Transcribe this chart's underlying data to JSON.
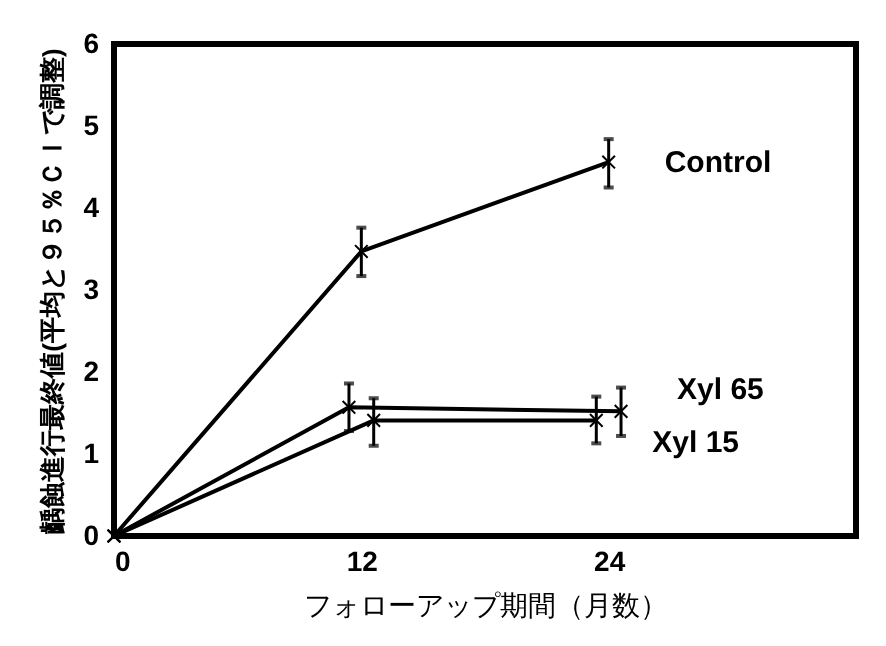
{
  "chart_data": {
    "type": "line",
    "xlabel": "フォローアップ期間（月数）",
    "ylabel": "齲蝕進行最終値(平均と９５％ＣＩで調整)",
    "xlim": [
      0,
      36
    ],
    "xticks": [
      0,
      12,
      24
    ],
    "ylim": [
      0,
      6
    ],
    "yticks": [
      0,
      1,
      2,
      3,
      4,
      5,
      6
    ],
    "grid": false,
    "marker": "cross",
    "line_style": "solid",
    "series": [
      {
        "name": "Control",
        "color": "#000000",
        "x": [
          0,
          12,
          24
        ],
        "values": [
          0,
          3.47,
          4.56
        ],
        "errors": [
          null,
          [
            3.17,
            3.76
          ],
          [
            4.25,
            4.84
          ]
        ]
      },
      {
        "name": "Xyl 65",
        "color": "#000000",
        "x": [
          0,
          11.4,
          24.6
        ],
        "values": [
          0,
          1.57,
          1.52
        ],
        "errors": [
          null,
          [
            1.28,
            1.86
          ],
          [
            1.22,
            1.81
          ]
        ]
      },
      {
        "name": "Xyl 15",
        "color": "#000000",
        "x": [
          0,
          12.6,
          23.4
        ],
        "values": [
          0,
          1.41,
          1.41
        ],
        "errors": [
          null,
          [
            1.1,
            1.68
          ],
          [
            1.13,
            1.7
          ]
        ]
      }
    ]
  }
}
